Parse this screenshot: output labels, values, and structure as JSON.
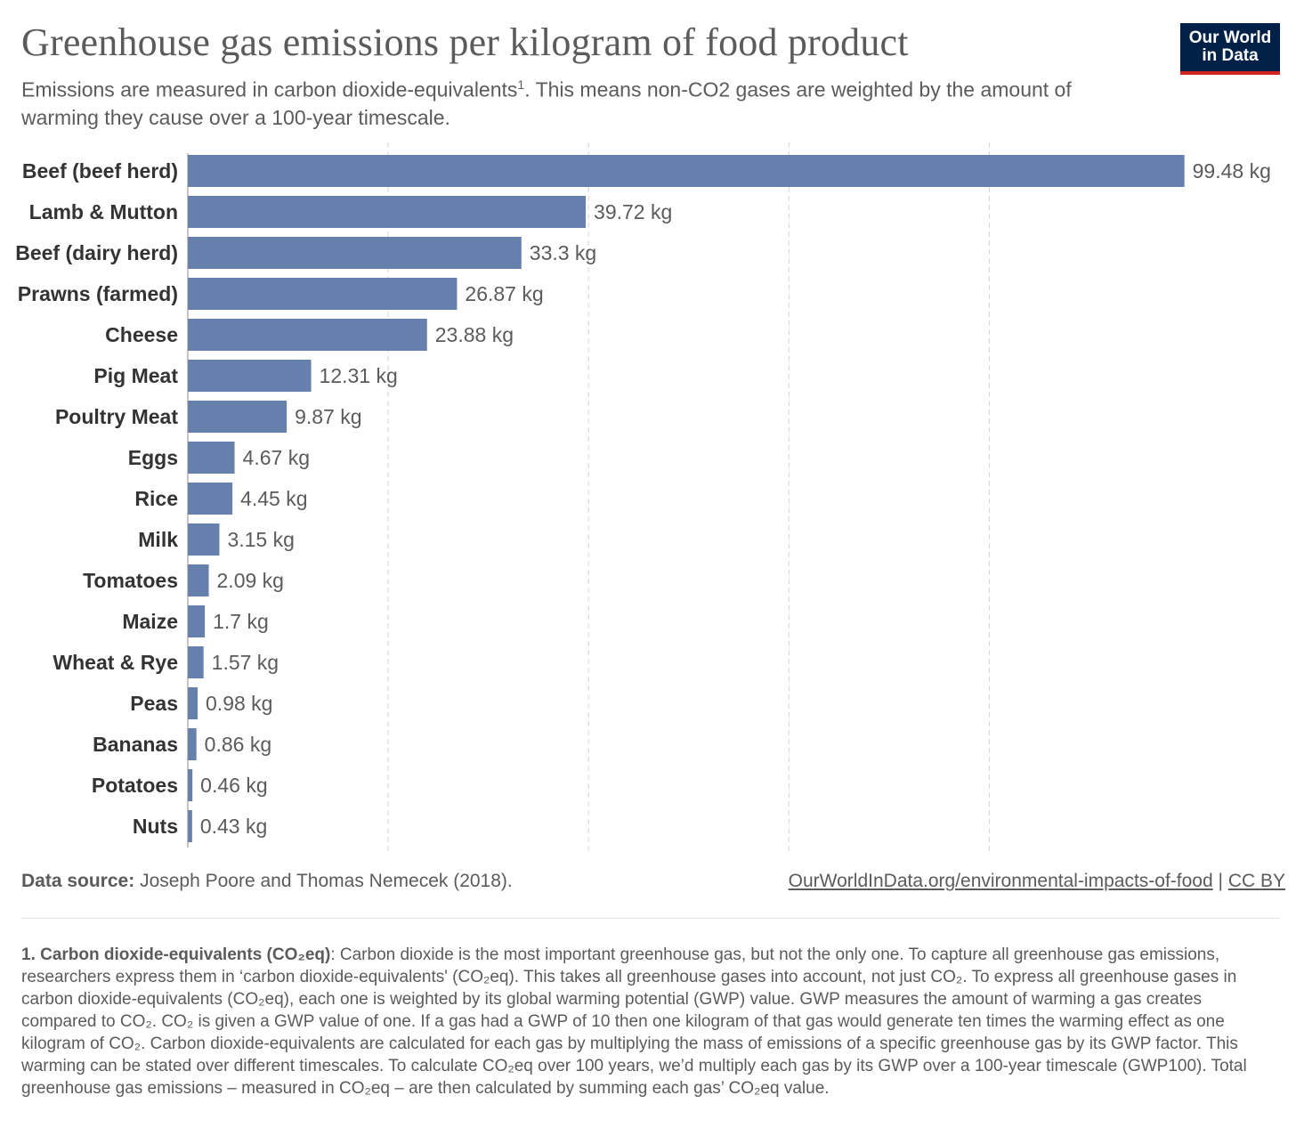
{
  "header": {
    "title": "Greenhouse gas emissions per kilogram of food product",
    "subtitle": "Emissions are measured in carbon dioxide-equivalents",
    "subtitle_sup": "1",
    "subtitle_rest": ". This means non-CO2 gases are weighted by the amount of warming they cause over a 100-year timescale.",
    "logo_line1": "Our World",
    "logo_line2": "in Data"
  },
  "colors": {
    "bar": "#6680ad",
    "grid": "#d6d6d6",
    "logo_bg": "#002147",
    "logo_accent": "#ce261e"
  },
  "chart_data": {
    "type": "bar",
    "orientation": "horizontal",
    "title": "Greenhouse gas emissions per kilogram of food product",
    "unit": "kg",
    "xlim": [
      0,
      100
    ],
    "grid": true,
    "categories": [
      "Beef (beef herd)",
      "Lamb & Mutton",
      "Beef (dairy herd)",
      "Prawns (farmed)",
      "Cheese",
      "Pig Meat",
      "Poultry Meat",
      "Eggs",
      "Rice",
      "Milk",
      "Tomatoes",
      "Maize",
      "Wheat & Rye",
      "Peas",
      "Bananas",
      "Potatoes",
      "Nuts"
    ],
    "values": [
      99.48,
      39.72,
      33.3,
      26.87,
      23.88,
      12.31,
      9.87,
      4.67,
      4.45,
      3.15,
      2.09,
      1.7,
      1.57,
      0.98,
      0.86,
      0.46,
      0.43
    ],
    "value_labels": [
      "99.48 kg",
      "39.72 kg",
      "33.3 kg",
      "26.87 kg",
      "23.88 kg",
      "12.31 kg",
      "9.87 kg",
      "4.67 kg",
      "4.45 kg",
      "3.15 kg",
      "2.09 kg",
      "1.7 kg",
      "1.57 kg",
      "0.98 kg",
      "0.86 kg",
      "0.46 kg",
      "0.43 kg"
    ]
  },
  "footer": {
    "source_label": "Data source:",
    "source_text": "Joseph Poore and Thomas Nemecek (2018).",
    "link_text": "OurWorldInData.org/environmental-impacts-of-food",
    "separator": "|",
    "license": "CC BY"
  },
  "footnote": {
    "term": "1. Carbon dioxide-equivalents (CO₂eq)",
    "text": ": Carbon dioxide is the most important greenhouse gas, but not the only one. To capture all greenhouse gas emissions, researchers express them in ‘carbon dioxide-equivalents' (CO₂eq). This takes all greenhouse gases into account, not just CO₂. To express all greenhouse gases in carbon dioxide-equivalents (CO₂eq), each one is weighted by its global warming potential (GWP) value. GWP measures the amount of warming a gas creates compared to CO₂. CO₂ is given a GWP value of one. If a gas had a GWP of 10 then one kilogram of that gas would generate ten times the warming effect as one kilogram of CO₂. Carbon dioxide-equivalents are calculated for each gas by multiplying the mass of emissions of a specific greenhouse gas by its GWP factor. This warming can be stated over different timescales. To calculate CO₂eq over 100 years, we’d multiply each gas by its GWP over a 100-year timescale (GWP100). Total greenhouse gas emissions – measured in CO₂eq – are then calculated by summing each gas’ CO₂eq value."
  }
}
